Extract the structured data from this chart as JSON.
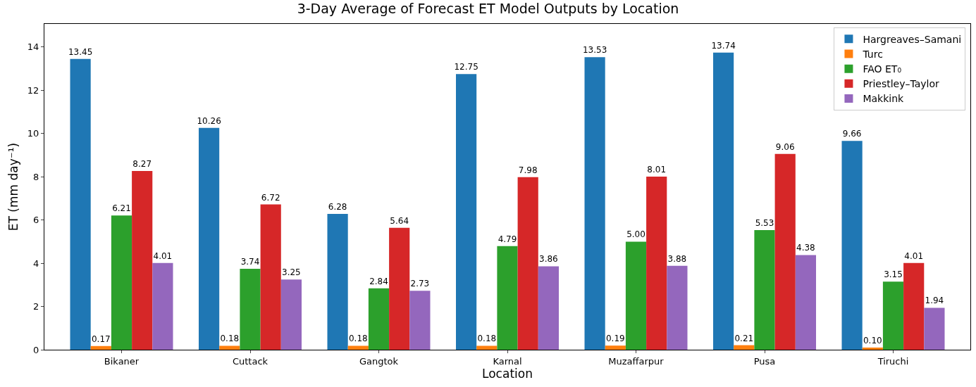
{
  "chart_data": {
    "type": "bar",
    "title": "3-Day Average of Forecast ET Model Outputs by Location",
    "xlabel": "Location",
    "ylabel": "ET (mm day⁻¹)",
    "categories": [
      "Bikaner",
      "Cuttack",
      "Gangtok",
      "Karnal",
      "Muzaffarpur",
      "Pusa",
      "Tiruchi"
    ],
    "series": [
      {
        "name": "Hargreaves–Samani",
        "color": "#1f77b4",
        "values": [
          13.45,
          10.26,
          6.28,
          12.75,
          13.53,
          13.74,
          9.66
        ],
        "value_labels": [
          "13.45",
          "10.26",
          "6.28",
          "12.75",
          "13.53",
          "13.74",
          "9.66"
        ]
      },
      {
        "name": "Turc",
        "color": "#ff7f0e",
        "values": [
          0.17,
          0.18,
          0.18,
          0.18,
          0.19,
          0.21,
          0.1
        ],
        "value_labels": [
          "0.17",
          "0.18",
          "0.18",
          "0.18",
          "0.19",
          "0.21",
          "0.10"
        ]
      },
      {
        "name": "FAO ET₀",
        "color": "#2ca02c",
        "values": [
          6.21,
          3.74,
          2.84,
          4.79,
          5.0,
          5.53,
          3.15
        ],
        "value_labels": [
          "6.21",
          "3.74",
          "2.84",
          "4.79",
          "5.00",
          "5.53",
          "3.15"
        ]
      },
      {
        "name": "Priestley–Taylor",
        "color": "#d62728",
        "values": [
          8.27,
          6.72,
          5.64,
          7.98,
          8.01,
          9.06,
          4.01
        ],
        "value_labels": [
          "8.27",
          "6.72",
          "5.64",
          "7.98",
          "8.01",
          "9.06",
          "4.01"
        ]
      },
      {
        "name": "Makkink",
        "color": "#9467bd",
        "values": [
          4.01,
          3.25,
          2.73,
          3.86,
          3.88,
          4.38,
          1.94
        ],
        "value_labels": [
          "4.01",
          "3.25",
          "2.73",
          "3.86",
          "3.88",
          "4.38",
          "1.94"
        ]
      }
    ],
    "ylim": [
      0,
      15.07
    ],
    "yticks": [
      0,
      2,
      4,
      6,
      8,
      10,
      12,
      14
    ],
    "grid": false,
    "legend": "top right"
  }
}
